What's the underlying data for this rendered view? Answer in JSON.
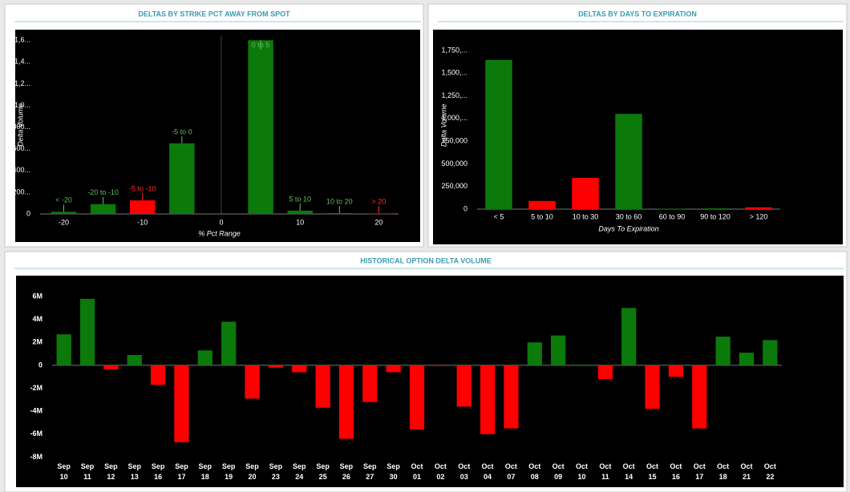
{
  "chart_data": [
    {
      "type": "bar",
      "title": "DELTAS BY STRIKE PCT AWAY FROM SPOT",
      "xlabel": "% Pct Range",
      "ylabel": "Delta Volume",
      "categories": [
        "< -20",
        "-20 to -10",
        "-5 to -10",
        "-5 to 0",
        "0 to 5",
        "5 to 10",
        "10 to 20",
        "> 20"
      ],
      "x": [
        -20,
        -15,
        -10,
        -5,
        5,
        10,
        15,
        20
      ],
      "values": [
        20,
        90,
        125,
        650,
        1600,
        30,
        8,
        5
      ],
      "colors": [
        "#0b7a0b",
        "#0b7a0b",
        "#ff0000",
        "#0b7a0b",
        "#0b7a0b",
        "#0b7a0b",
        "#0b7a0b",
        "#ff0000"
      ],
      "label_colors": [
        "#5fbf5f",
        "#5fbf5f",
        "#ff3030",
        "#5fbf5f",
        "#5fbf5f",
        "#5fbf5f",
        "#5fbf5f",
        "#ff3030"
      ],
      "xlim": [
        -23,
        22.5
      ],
      "xticks": [
        -20,
        -10,
        0,
        10,
        20
      ],
      "ylim": [
        0,
        1640
      ],
      "yticks": [
        0,
        {
          "value": 200,
          "label": "200..."
        },
        {
          "value": 400,
          "label": "400..."
        },
        {
          "value": 600,
          "label": "600..."
        },
        {
          "value": 800,
          "label": "800..."
        },
        {
          "value": 1000,
          "label": "1,0..."
        },
        {
          "value": 1200,
          "label": "1,2..."
        },
        {
          "value": 1400,
          "label": "1,4..."
        },
        {
          "value": 1600,
          "label": "1,6..."
        }
      ]
    },
    {
      "type": "bar",
      "title": "DELTAS BY DAYS TO EXPIRATION",
      "xlabel": "Days To Expiration",
      "ylabel": "Delta Volume",
      "categories": [
        "< 5",
        "5 to 10",
        "10 to 30",
        "30 to 60",
        "60 to 90",
        "90 to 120",
        "> 120"
      ],
      "values": [
        1645000,
        90000,
        345000,
        1050000,
        5000,
        8000,
        20000
      ],
      "colors": [
        "#0b7a0b",
        "#ff0000",
        "#ff0000",
        "#0b7a0b",
        "#0b7a0b",
        "#0b7a0b",
        "#ff0000"
      ],
      "ylim": [
        0,
        1850000
      ],
      "yticks": [
        0,
        {
          "value": 250000,
          "label": "250,000"
        },
        {
          "value": 500000,
          "label": "500,000"
        },
        {
          "value": 750000,
          "label": "750,000"
        },
        {
          "value": 1000000,
          "label": "1,000,..."
        },
        {
          "value": 1250000,
          "label": "1,250,..."
        },
        {
          "value": 1500000,
          "label": "1,500,..."
        },
        {
          "value": 1750000,
          "label": "1,750,..."
        }
      ]
    },
    {
      "type": "bar",
      "title": "HISTORICAL OPTION DELTA VOLUME",
      "categories": [
        [
          "Sep",
          "10"
        ],
        [
          "Sep",
          "11"
        ],
        [
          "Sep",
          "12"
        ],
        [
          "Sep",
          "13"
        ],
        [
          "Sep",
          "16"
        ],
        [
          "Sep",
          "17"
        ],
        [
          "Sep",
          "18"
        ],
        [
          "Sep",
          "19"
        ],
        [
          "Sep",
          "20"
        ],
        [
          "Sep",
          "23"
        ],
        [
          "Sep",
          "24"
        ],
        [
          "Sep",
          "25"
        ],
        [
          "Sep",
          "26"
        ],
        [
          "Sep",
          "27"
        ],
        [
          "Sep",
          "30"
        ],
        [
          "Oct",
          "01"
        ],
        [
          "Oct",
          "02"
        ],
        [
          "Oct",
          "03"
        ],
        [
          "Oct",
          "04"
        ],
        [
          "Oct",
          "07"
        ],
        [
          "Oct",
          "08"
        ],
        [
          "Oct",
          "09"
        ],
        [
          "Oct",
          "10"
        ],
        [
          "Oct",
          "11"
        ],
        [
          "Oct",
          "14"
        ],
        [
          "Oct",
          "15"
        ],
        [
          "Oct",
          "16"
        ],
        [
          "Oct",
          "17"
        ],
        [
          "Oct",
          "18"
        ],
        [
          "Oct",
          "21"
        ],
        [
          "Oct",
          "22"
        ]
      ],
      "values": [
        2700000,
        5800000,
        -350000,
        900000,
        -1700000,
        -6700000,
        1300000,
        3800000,
        -2900000,
        -200000,
        -600000,
        -3700000,
        -6400000,
        -3200000,
        -600000,
        -5600000,
        -50000,
        -3600000,
        -6000000,
        -5500000,
        2000000,
        2600000,
        50000,
        -1200000,
        5000000,
        -3800000,
        -1000000,
        -5500000,
        2500000,
        1100000,
        2200000
      ],
      "positive_color": "#0b7a0b",
      "negative_color": "#ff0000",
      "ylim": [
        -8300000,
        6700000
      ],
      "yticks": [
        {
          "value": 6000000,
          "label": "6M"
        },
        {
          "value": 4000000,
          "label": "4M"
        },
        {
          "value": 2000000,
          "label": "2M"
        },
        0,
        {
          "value": -2000000,
          "label": "-2M"
        },
        {
          "value": -4000000,
          "label": "-4M"
        },
        {
          "value": -6000000,
          "label": "-6M"
        },
        {
          "value": -8000000,
          "label": "-8M"
        }
      ]
    }
  ]
}
